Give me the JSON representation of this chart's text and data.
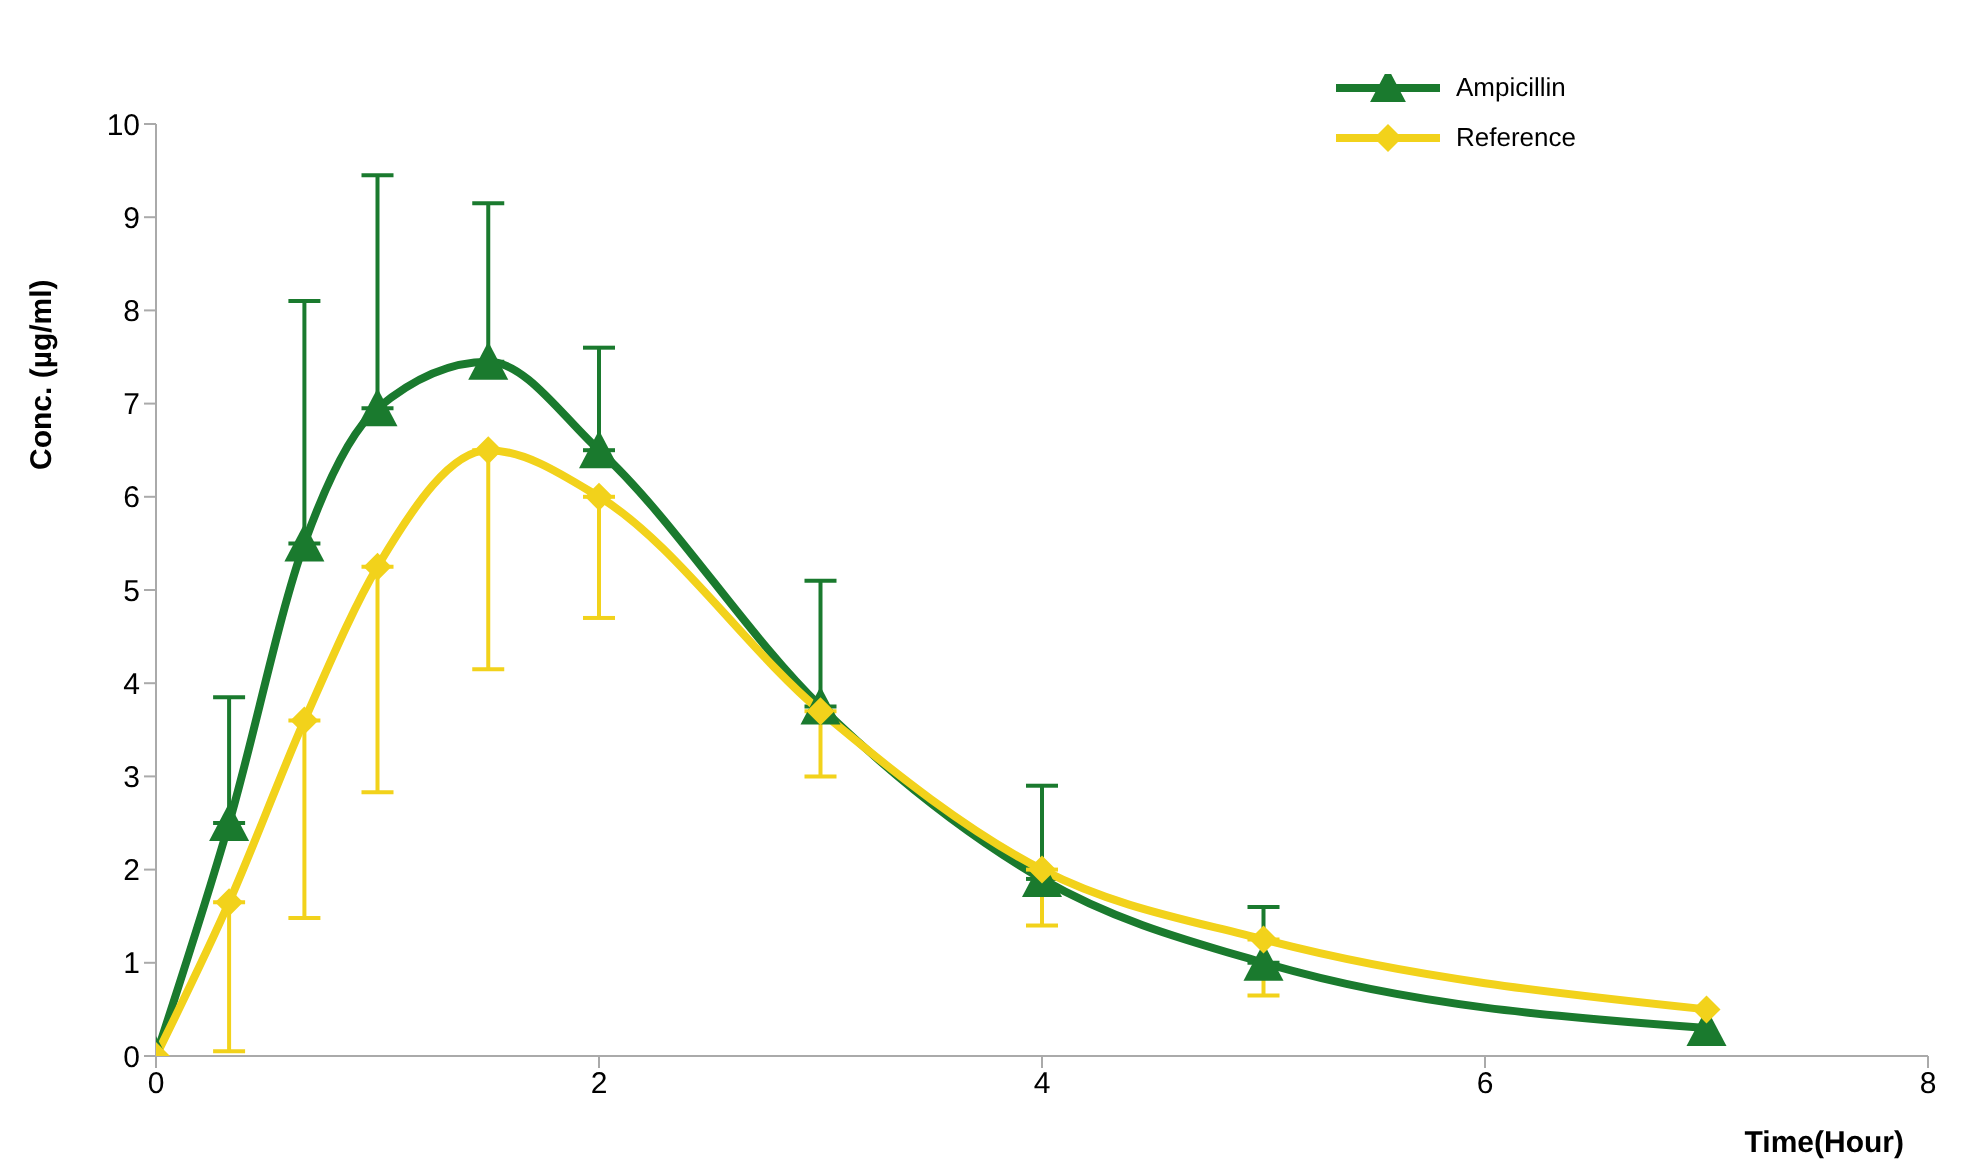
{
  "chart_data": {
    "type": "line",
    "xlabel": "Time(Hour)",
    "ylabel": "Conc. (µg/ml)",
    "x": [
      0,
      0.33,
      0.67,
      1,
      1.5,
      2,
      3,
      4,
      5,
      7
    ],
    "series": [
      {
        "name": "Ampicillin",
        "color": "#1a7a2e",
        "marker": "triangle",
        "values": [
          0,
          2.5,
          5.5,
          6.95,
          7.45,
          6.5,
          3.75,
          1.9,
          1.0,
          0.3
        ],
        "errors": [
          null,
          [
            2.5,
            3.85
          ],
          [
            5.5,
            8.1
          ],
          [
            6.95,
            9.45
          ],
          [
            7.45,
            9.15
          ],
          [
            6.5,
            7.6
          ],
          [
            3.75,
            5.1
          ],
          [
            1.9,
            2.9
          ],
          [
            1.0,
            1.6
          ],
          null
        ]
      },
      {
        "name": "Reference",
        "color": "#f2d21b",
        "marker": "diamond",
        "values": [
          0,
          1.65,
          3.6,
          5.25,
          6.5,
          6.0,
          3.7,
          2.0,
          1.25,
          0.5
        ],
        "errors": [
          null,
          [
            0.05,
            1.65
          ],
          [
            1.48,
            3.6
          ],
          [
            2.83,
            5.25
          ],
          [
            4.15,
            6.5
          ],
          [
            4.7,
            6.0
          ],
          [
            3.0,
            3.7
          ],
          [
            1.4,
            2.0
          ],
          [
            0.65,
            1.25
          ],
          null
        ]
      }
    ],
    "xlim": [
      0,
      8
    ],
    "xticks": [
      0,
      2,
      4,
      6,
      8
    ],
    "ylim": [
      0,
      10
    ],
    "yticks": [
      0,
      1,
      2,
      3,
      4,
      5,
      6,
      7,
      8,
      9,
      10
    ],
    "grid": false,
    "legend": "top right",
    "line_style": "solid"
  }
}
